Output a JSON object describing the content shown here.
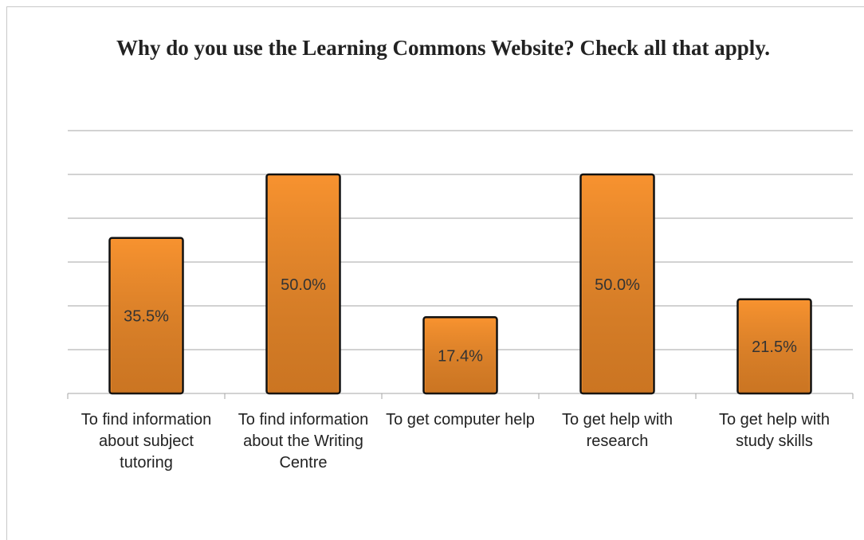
{
  "chart_data": {
    "type": "bar",
    "title": "Why do you use the Learning Commons Website? Check all that apply.",
    "categories": [
      "To find information about subject tutoring",
      "To find information about the Writing Centre",
      "To get computer help",
      "To get help with research",
      "To get help with study skills"
    ],
    "values": [
      35.5,
      50.0,
      17.4,
      50.0,
      21.5
    ],
    "value_labels": [
      "35.5%",
      "50.0%",
      "17.4%",
      "50.0%",
      "21.5%"
    ],
    "color": "#f7922f",
    "ylim": [
      0,
      60
    ],
    "yticks": [
      0,
      10,
      20,
      30,
      40,
      50,
      60
    ],
    "grid": true
  }
}
